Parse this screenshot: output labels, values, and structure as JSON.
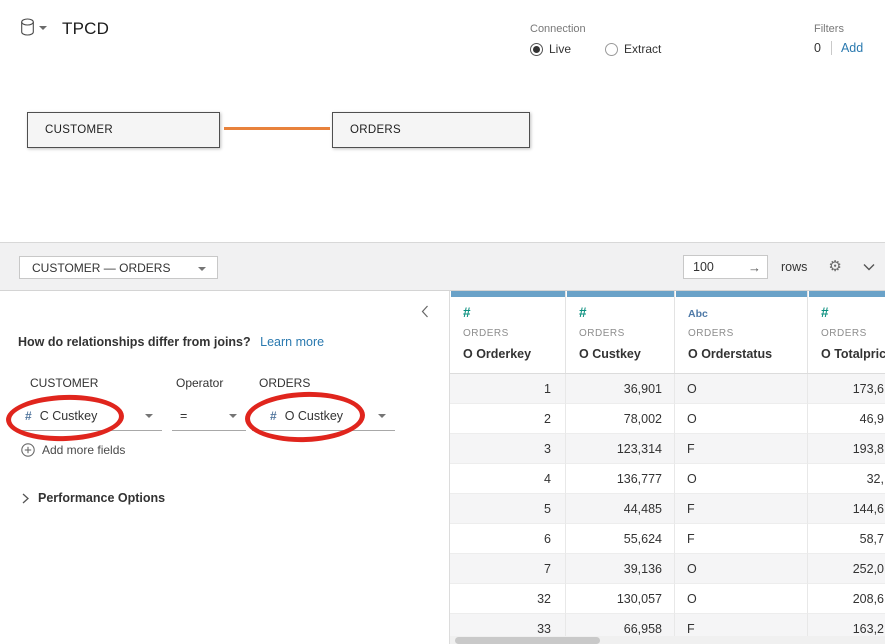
{
  "header": {
    "title": "TPCD",
    "connection": {
      "label": "Connection",
      "options": [
        {
          "label": "Live",
          "selected": true
        },
        {
          "label": "Extract",
          "selected": false
        }
      ]
    },
    "filters": {
      "label": "Filters",
      "count": "0",
      "add_label": "Add"
    }
  },
  "canvas": {
    "tables": [
      {
        "name": "CUSTOMER"
      },
      {
        "name": "ORDERS"
      }
    ]
  },
  "panel_header": {
    "relationship_selector": "CUSTOMER — ORDERS",
    "rows_value": "100",
    "rows_unit": "rows",
    "go_arrow": "→",
    "gear_glyph": "⚙"
  },
  "editor": {
    "question": "How do relationships differ from joins?",
    "learn_more": "Learn more",
    "groups": [
      {
        "label": "CUSTOMER",
        "field": "C Custkey",
        "type_glyph": "#"
      },
      {
        "label": "Operator",
        "field": "=",
        "type_glyph": ""
      },
      {
        "label": "ORDERS",
        "field": "O Custkey",
        "type_glyph": "#"
      }
    ],
    "add_more_fields": "Add more fields",
    "performance_options": "Performance Options"
  },
  "grid": {
    "columns": [
      {
        "type": "number",
        "type_glyph": "#",
        "table": "ORDERS",
        "field": "O Orderkey",
        "align": "r"
      },
      {
        "type": "number",
        "type_glyph": "#",
        "table": "ORDERS",
        "field": "O Custkey",
        "align": "r"
      },
      {
        "type": "string",
        "type_glyph": "Abc",
        "table": "ORDERS",
        "field": "O Orderstatus",
        "align": "l"
      },
      {
        "type": "number",
        "type_glyph": "#",
        "table": "ORDERS",
        "field": "O Totalprice",
        "align": "r"
      }
    ],
    "rows": [
      [
        "1",
        "36,901",
        "O",
        "173,6"
      ],
      [
        "2",
        "78,002",
        "O",
        "46,9"
      ],
      [
        "3",
        "123,314",
        "F",
        "193,8"
      ],
      [
        "4",
        "136,777",
        "O",
        "32,"
      ],
      [
        "5",
        "44,485",
        "F",
        "144,6"
      ],
      [
        "6",
        "55,624",
        "F",
        "58,7"
      ],
      [
        "7",
        "39,136",
        "O",
        "252,0"
      ],
      [
        "32",
        "130,057",
        "O",
        "208,6"
      ],
      [
        "33",
        "66,958",
        "F",
        "163,2"
      ]
    ]
  },
  "colors": {
    "relationship_line_orange": "#e8823c",
    "column_strip_blue": "#6aa2c8",
    "number_icon_teal": "#0c9180",
    "string_icon_blue": "#4e79a7",
    "editor_field_icon_blue": "#55789f",
    "link_blue": "#2a79af",
    "annotation_red": "#e0251d"
  }
}
